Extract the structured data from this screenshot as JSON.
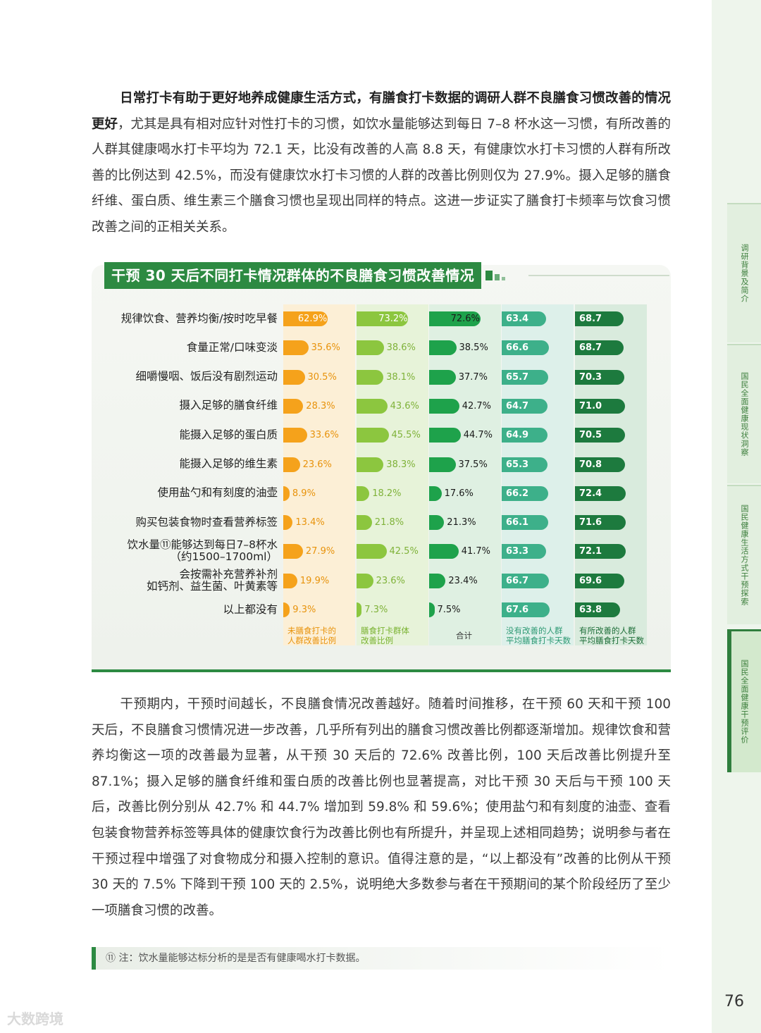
{
  "paragraph_1": {
    "lead": "日常打卡有助于更好地养成健康生活方式，有膳食打卡数据的调研人群不良膳食习惯改善的情况更好",
    "rest": "，尤其是具有相对应针对性打卡的习惯，如饮水量能够达到每日 7–8 杯水这一习惯，有所改善的人群其健康喝水打卡平均为 72.1 天，比没有改善的人高 8.8 天，有健康饮水打卡习惯的人群有所改善的比例达到 42.5%，而没有健康饮水打卡习惯的人群的改善比例则仅为 27.9%。摄入足够的膳食纤维、蛋白质、维生素三个膳食习惯也呈现出同样的特点。这进一步证实了膳食打卡频率与饮食习惯改善之间的正相关关系。"
  },
  "paragraph_2": "干预期内，干预时间越长，不良膳食情况改善越好。随着时间推移，在干预 60 天和干预 100 天后，不良膳食习惯情况进一步改善，几乎所有列出的膳食习惯改善比例都逐渐增加。规律饮食和营养均衡这一项的改善最为显著，从干预 30 天后的 72.6% 改善比例，100 天后改善比例提升至 87.1%；摄入足够的膳食纤维和蛋白质的改善比例也显著提高，对比干预 30 天后与干预 100 天后，改善比例分别从 42.7% 和 44.7% 增加到 59.8% 和 59.6%；使用盐勺和有刻度的油壶、查看包装食物营养标签等具体的健康饮食行为改善比例也有所提升，并呈现上述相同趋势；说明参与者在干预过程中增强了对食物成分和摄入控制的意识。值得注意的是，“以上都没有”改善的比例从干预 30 天的 7.5% 下降到干预 100 天的 2.5%，说明绝大多数参与者在干预期间的某个阶段经历了至少一项膳食习惯的改善。",
  "side_tabs": [
    "调研背景及简介",
    "国民全面健康现状洞察",
    "国民健康生活方式干预探索",
    "国民全面健康干预评价"
  ],
  "chart_data": {
    "type": "bar",
    "title": "干预 30 天后不同打卡情况群体的不良膳食习惯改善情况",
    "categories": [
      "规律饮食、营养均衡/按时吃早餐",
      "食量正常/口味变淡",
      "细嚼慢咽、饭后没有剧烈运动",
      "摄入足够的膳食纤维",
      "能摄入足够的蛋白质",
      "能摄入足够的维生素",
      "使用盐勺和有刻度的油壶",
      "购买包装食物时查看营养标签",
      "饮水量⑪能够达到每日7–8杯水（约1500–1700ml）",
      "会按需补充营养补剂如钙剂、益生菌、叶黄素等",
      "以上都没有"
    ],
    "label_lines": [
      [
        "规律饮食、营养均衡/按时吃早餐"
      ],
      [
        "食量正常/口味变淡"
      ],
      [
        "细嚼慢咽、饭后没有剧烈运动"
      ],
      [
        "摄入足够的膳食纤维"
      ],
      [
        "能摄入足够的蛋白质"
      ],
      [
        "能摄入足够的维生素"
      ],
      [
        "使用盐勺和有刻度的油壶"
      ],
      [
        "购买包装食物时查看营养标签"
      ],
      [
        "饮水量⑪能够达到每日7–8杯水",
        "（约1500–1700ml）"
      ],
      [
        "会按需补充营养补剂",
        "如钙剂、益生菌、叶黄素等"
      ],
      [
        "以上都没有"
      ]
    ],
    "series": [
      {
        "name": "未膳食打卡的人群改善比例",
        "name_lines": [
          "未膳食打卡的",
          "人群改善比例"
        ],
        "values": [
          62.9,
          35.6,
          30.5,
          28.3,
          33.6,
          23.6,
          8.9,
          13.4,
          27.9,
          19.9,
          9.3
        ],
        "labels": [
          "62.9%",
          "35.6%",
          "30.5%",
          "28.3%",
          "33.6%",
          "23.6%",
          "8.9%",
          "13.4%",
          "27.9%",
          "19.9%",
          "9.3%"
        ],
        "color": "#f5a21b",
        "bg": "#fcefd6",
        "text_color": "#ffffff",
        "head_color": "#e8930c",
        "max": 100
      },
      {
        "name": "膳食打卡群体改善比例",
        "name_lines": [
          "膳食打卡群体",
          "改善比例"
        ],
        "values": [
          73.2,
          38.6,
          38.1,
          43.6,
          45.5,
          38.3,
          18.2,
          21.8,
          42.5,
          23.6,
          7.3
        ],
        "labels": [
          "73.2%",
          "38.6%",
          "38.1%",
          "43.6%",
          "45.5%",
          "38.3%",
          "18.2%",
          "21.8%",
          "42.5%",
          "23.6%",
          "7.3%"
        ],
        "color": "#8cc63f",
        "bg": "#e7f3d9",
        "text_color": "#ffffff",
        "head_color": "#79b230",
        "max": 100
      },
      {
        "name": "合计",
        "name_lines": [
          "合计"
        ],
        "values": [
          72.6,
          38.5,
          37.7,
          42.7,
          44.7,
          37.5,
          17.6,
          21.3,
          41.7,
          23.4,
          7.5
        ],
        "labels": [
          "72.6%",
          "38.5%",
          "37.7%",
          "42.7%",
          "44.7%",
          "37.5%",
          "17.6%",
          "21.3%",
          "41.7%",
          "23.4%",
          "7.5%"
        ],
        "color": "#1ea24b",
        "bg": "#dff0e2",
        "text_color": "#1a1a1a",
        "head_color": "#1a8a3e",
        "max": 100
      },
      {
        "name": "没有改善的人群平均膳食打卡天数",
        "name_lines": [
          "没有改善的人群",
          "平均膳食打卡天数"
        ],
        "values": [
          63.4,
          66.6,
          65.7,
          64.7,
          64.9,
          65.3,
          66.2,
          66.1,
          63.3,
          66.7,
          67.6
        ],
        "labels": [
          "63.4",
          "66.6",
          "65.7",
          "64.7",
          "64.9",
          "65.3",
          "66.2",
          "66.1",
          "63.3",
          "66.7",
          "67.6"
        ],
        "color": "#3db08a",
        "bg": "#ddf0ea",
        "text_color": "#ffffff",
        "head_color": "#2e9a74",
        "max": 100
      },
      {
        "name": "有所改善的人群平均膳食打卡天数",
        "name_lines": [
          "有所改善的人群",
          "平均膳食打卡天数"
        ],
        "values": [
          68.7,
          68.7,
          70.3,
          71.0,
          70.5,
          70.8,
          72.4,
          71.6,
          72.1,
          69.6,
          63.8
        ],
        "labels": [
          "68.7",
          "68.7",
          "70.3",
          "71.0",
          "70.5",
          "70.8",
          "72.4",
          "71.6",
          "72.1",
          "69.6",
          "63.8"
        ],
        "color": "#1d7a3e",
        "bg": "#d9ebdd",
        "text_color": "#ffffff",
        "head_color": "#1d6e38",
        "max": 100
      }
    ]
  },
  "footnote": "⑪  注：饮水量能够达标分析的是是否有健康喝水打卡数据。",
  "page_number": "76",
  "watermark": "大数跨境"
}
